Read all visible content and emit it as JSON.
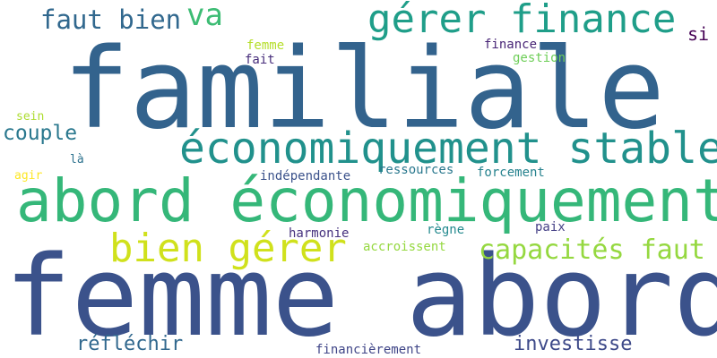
{
  "words": [
    {
      "text": "familiale",
      "color": "#33638d"
    },
    {
      "text": "femme abord",
      "color": "#3b528b"
    },
    {
      "text": "abord économiquement",
      "color": "#35b779"
    },
    {
      "text": "économiquement stable",
      "color": "#21918c"
    },
    {
      "text": "gérer finance",
      "color": "#1f9e89"
    },
    {
      "text": "faut bien",
      "color": "#31688e"
    },
    {
      "text": "va",
      "color": "#3dbc74"
    },
    {
      "text": "bien gérer",
      "color": "#d0e11c"
    },
    {
      "text": "capacités faut",
      "color": "#95d840"
    },
    {
      "text": "couple",
      "color": "#2a788e"
    },
    {
      "text": "réfléchir",
      "color": "#31688e"
    },
    {
      "text": "investisse",
      "color": "#3e4a89"
    },
    {
      "text": "si",
      "color": "#440154"
    },
    {
      "text": "finance",
      "color": "#482576"
    },
    {
      "text": "gestion",
      "color": "#6ece58"
    },
    {
      "text": "femme",
      "color": "#b5de2b"
    },
    {
      "text": "fait",
      "color": "#472d7b"
    },
    {
      "text": "sein",
      "color": "#addc30"
    },
    {
      "text": "là",
      "color": "#2c728e"
    },
    {
      "text": "agir",
      "color": "#fde725"
    },
    {
      "text": "indépendante",
      "color": "#3b528b"
    },
    {
      "text": "ressources",
      "color": "#2a788e"
    },
    {
      "text": "forcement",
      "color": "#26828e"
    },
    {
      "text": "harmonie",
      "color": "#46327e"
    },
    {
      "text": "règne",
      "color": "#23898e"
    },
    {
      "text": "paix",
      "color": "#433e85"
    },
    {
      "text": "accroissent",
      "color": "#95d840"
    },
    {
      "text": "financièrement",
      "color": "#404688"
    }
  ]
}
